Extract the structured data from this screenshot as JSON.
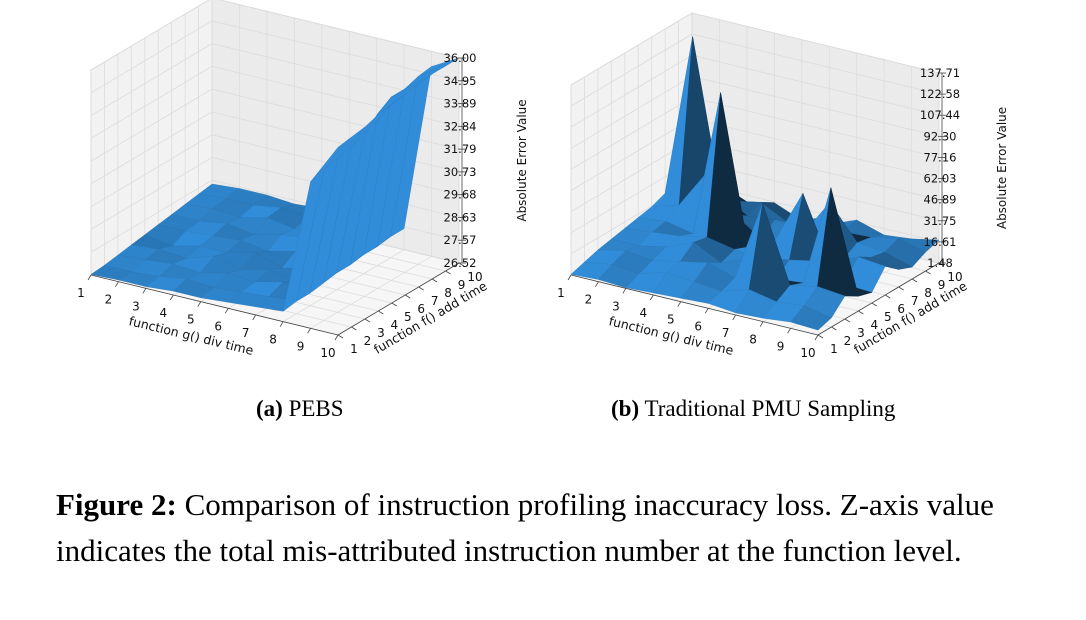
{
  "figure": {
    "label": "Figure 2:",
    "caption": "Comparison of instruction profiling inaccuracy loss. Z-axis value indicates the total mis-attributed instruction number at the function level."
  },
  "subfigures": [
    {
      "tag": "(a)",
      "name": "PEBS"
    },
    {
      "tag": "(b)",
      "name": "Traditional PMU Sampling"
    }
  ],
  "chart_data": [
    {
      "type": "surface3d",
      "title": "PEBS",
      "xlabel": "function g() div time",
      "ylabel": "function f() add time",
      "zlabel": "Absolute Error Value",
      "x_ticks": [
        "1",
        "2",
        "3",
        "4",
        "5",
        "6",
        "7",
        "8",
        "9",
        "10"
      ],
      "y_ticks": [
        "1",
        "2",
        "3",
        "4",
        "5",
        "6",
        "7",
        "8",
        "9",
        "10"
      ],
      "z_ticks": [
        "26.52",
        "27.57",
        "28.63",
        "29.68",
        "30.73",
        "31.79",
        "32.84",
        "33.89",
        "34.95",
        "36.00"
      ],
      "zlim": [
        26.52,
        36.0
      ],
      "color": "#2b7bbd",
      "z": [
        [
          35.2,
          35.3,
          35.4,
          35.6,
          35.7,
          35.8,
          35.9,
          36.0,
          36.0,
          36.0
        ],
        [
          33.3,
          33.5,
          33.6,
          33.8,
          34.0,
          34.6,
          35.0,
          35.0,
          35.2,
          35.3
        ],
        [
          27.0,
          27.1,
          27.1,
          27.2,
          27.3,
          27.3,
          27.4,
          27.4,
          27.5,
          27.5
        ],
        [
          26.9,
          27.0,
          27.3,
          27.0,
          27.2,
          27.5,
          27.3,
          27.4,
          27.6,
          27.4
        ],
        [
          26.8,
          26.9,
          27.0,
          27.2,
          26.9,
          27.3,
          27.5,
          27.6,
          27.5,
          27.6
        ],
        [
          26.7,
          26.8,
          27.1,
          26.9,
          27.3,
          27.0,
          27.4,
          27.3,
          27.5,
          27.5
        ],
        [
          26.7,
          26.9,
          26.8,
          27.2,
          27.0,
          27.2,
          27.1,
          27.5,
          27.6,
          27.4
        ],
        [
          26.6,
          26.7,
          26.9,
          26.8,
          27.0,
          27.1,
          27.3,
          27.2,
          27.4,
          27.5
        ],
        [
          26.6,
          26.6,
          26.8,
          26.9,
          26.7,
          27.0,
          27.1,
          27.3,
          27.4,
          27.5
        ],
        [
          26.55,
          26.6,
          26.7,
          26.8,
          26.9,
          27.0,
          27.1,
          27.2,
          27.3,
          27.4
        ]
      ]
    },
    {
      "type": "surface3d",
      "title": "Traditional PMU Sampling",
      "xlabel": "function g() div time",
      "ylabel": "function f() add time",
      "zlabel": "Absolute Error Value",
      "x_ticks": [
        "1",
        "2",
        "3",
        "4",
        "5",
        "6",
        "7",
        "8",
        "9",
        "10"
      ],
      "y_ticks": [
        "1",
        "2",
        "3",
        "4",
        "5",
        "6",
        "7",
        "8",
        "9",
        "10"
      ],
      "z_ticks": [
        "1.48",
        "16.61",
        "31.75",
        "46.89",
        "62.03",
        "77.16",
        "92.30",
        "107.44",
        "122.58",
        "137.71"
      ],
      "zlim": [
        1.48,
        137.71
      ],
      "color": "#2b7bbd",
      "z": [
        [
          5,
          8,
          18,
          12,
          9,
          22,
          14,
          10,
          15,
          18
        ],
        [
          6,
          12,
          20,
          85,
          10,
          24,
          18,
          16,
          20,
          14
        ],
        [
          4,
          10,
          16,
          12,
          22,
          14,
          12,
          18,
          16,
          12
        ],
        [
          3,
          14,
          70,
          10,
          18,
          60,
          20,
          42,
          15,
          18
        ],
        [
          5,
          8,
          12,
          20,
          14,
          22,
          16,
          14,
          20,
          10
        ],
        [
          4,
          10,
          18,
          12,
          16,
          12,
          12,
          20,
          12,
          8
        ],
        [
          3,
          12,
          14,
          22,
          20,
          118,
          25,
          18,
          22,
          16
        ],
        [
          2,
          6,
          10,
          14,
          16,
          12,
          50,
          30,
          18,
          12
        ],
        [
          3,
          8,
          12,
          10,
          14,
          16,
          22,
          137,
          55,
          20
        ],
        [
          2,
          5,
          8,
          10,
          12,
          14,
          16,
          20,
          18,
          16
        ]
      ]
    }
  ]
}
